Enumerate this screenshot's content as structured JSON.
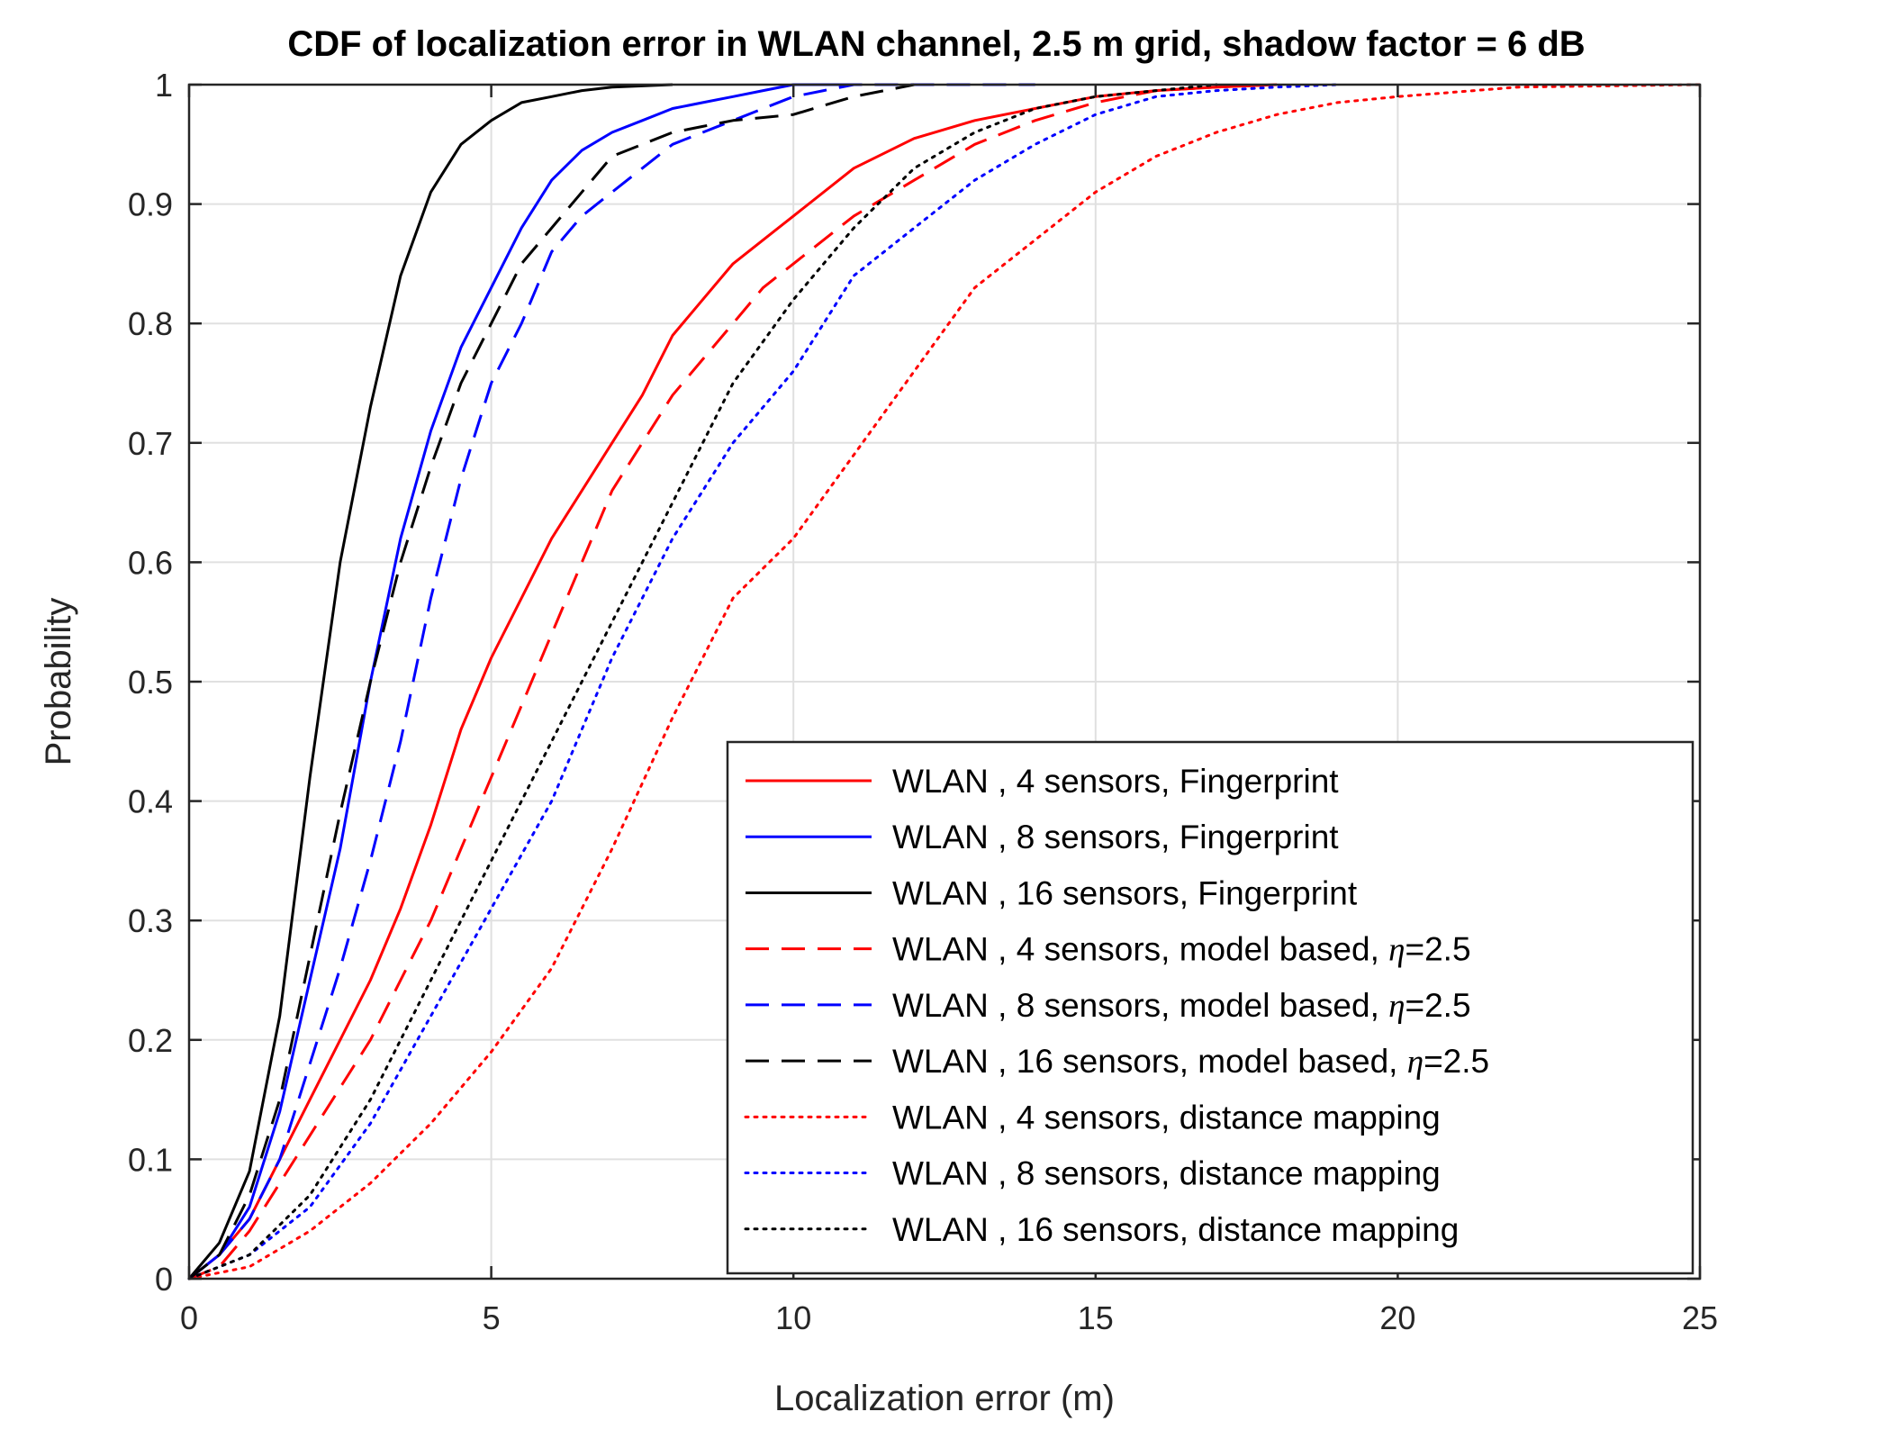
{
  "chart_data": {
    "type": "line",
    "title": "CDF of localization error in WLAN channel, 2.5 m grid, shadow factor =  6 dB",
    "xlabel": "Localization error (m)",
    "ylabel": "Probability",
    "xlim": [
      0,
      25
    ],
    "ylim": [
      0,
      1
    ],
    "xticks": [
      0,
      5,
      10,
      15,
      20,
      25
    ],
    "yticks": [
      0,
      0.1,
      0.2,
      0.3,
      0.4,
      0.5,
      0.6,
      0.7,
      0.8,
      0.9,
      1
    ],
    "xtick_labels": [
      "0",
      "5",
      "10",
      "15",
      "20",
      "25"
    ],
    "ytick_labels": [
      "0",
      "0.1",
      "0.2",
      "0.3",
      "0.4",
      "0.5",
      "0.6",
      "0.7",
      "0.8",
      "0.9",
      "1"
    ],
    "grid": true,
    "legend_position": "bottom-right",
    "series": [
      {
        "name": "WLAN , 4 sensors,    Fingerprint",
        "color": "#ff0000",
        "style": "solid",
        "x": [
          0,
          0.5,
          1,
          1.5,
          2,
          2.5,
          3,
          3.5,
          4,
          4.5,
          5,
          5.5,
          6,
          6.5,
          7,
          7.5,
          8,
          8.5,
          9,
          9.5,
          10,
          11,
          12,
          13,
          14,
          15,
          16,
          17,
          18
        ],
        "y": [
          0,
          0.02,
          0.05,
          0.1,
          0.15,
          0.2,
          0.25,
          0.31,
          0.38,
          0.46,
          0.52,
          0.57,
          0.62,
          0.66,
          0.7,
          0.74,
          0.79,
          0.82,
          0.85,
          0.87,
          0.89,
          0.93,
          0.955,
          0.97,
          0.98,
          0.99,
          0.995,
          0.998,
          1
        ]
      },
      {
        "name": "WLAN , 8 sensors,    Fingerprint",
        "color": "#0000ff",
        "style": "solid",
        "x": [
          0,
          0.5,
          1,
          1.5,
          2,
          2.5,
          3,
          3.5,
          4,
          4.5,
          5,
          5.5,
          6,
          6.5,
          7,
          7.5,
          8,
          8.5,
          9,
          9.5,
          10,
          11
        ],
        "y": [
          0,
          0.02,
          0.06,
          0.14,
          0.25,
          0.36,
          0.5,
          0.62,
          0.71,
          0.78,
          0.83,
          0.88,
          0.92,
          0.945,
          0.96,
          0.97,
          0.98,
          0.985,
          0.99,
          0.995,
          1,
          1
        ]
      },
      {
        "name": "WLAN , 16 sensors,    Fingerprint",
        "color": "#000000",
        "style": "solid",
        "x": [
          0,
          0.5,
          1,
          1.5,
          2,
          2.5,
          3,
          3.5,
          4,
          4.5,
          5,
          5.5,
          6,
          6.5,
          7,
          8
        ],
        "y": [
          0,
          0.03,
          0.09,
          0.22,
          0.42,
          0.6,
          0.73,
          0.84,
          0.91,
          0.95,
          0.97,
          0.985,
          0.99,
          0.995,
          0.998,
          1
        ]
      },
      {
        "name": "WLAN , 4 sensors,    model based, η=2.5",
        "color": "#ff0000",
        "style": "dashed",
        "x": [
          0,
          0.5,
          1,
          1.5,
          2,
          2.5,
          3,
          3.5,
          4,
          4.5,
          5,
          5.5,
          6,
          6.5,
          7,
          7.5,
          8,
          8.5,
          9,
          9.5,
          10,
          11,
          12,
          13,
          14,
          15,
          16,
          17,
          18
        ],
        "y": [
          0,
          0.01,
          0.04,
          0.08,
          0.12,
          0.16,
          0.2,
          0.25,
          0.3,
          0.36,
          0.42,
          0.48,
          0.54,
          0.6,
          0.66,
          0.7,
          0.74,
          0.77,
          0.8,
          0.83,
          0.85,
          0.89,
          0.92,
          0.95,
          0.97,
          0.985,
          0.995,
          0.998,
          1
        ]
      },
      {
        "name": "WLAN , 8 sensors,    model based, η=2.5",
        "color": "#0000ff",
        "style": "dashed",
        "x": [
          0,
          0.5,
          1,
          1.5,
          2,
          2.5,
          3,
          3.5,
          4,
          4.5,
          5,
          5.5,
          6,
          6.5,
          7,
          7.5,
          8,
          8.5,
          9,
          9.5,
          10,
          10.5,
          11,
          12,
          13,
          14
        ],
        "y": [
          0,
          0.02,
          0.05,
          0.1,
          0.18,
          0.26,
          0.35,
          0.45,
          0.57,
          0.67,
          0.75,
          0.8,
          0.86,
          0.89,
          0.91,
          0.93,
          0.95,
          0.96,
          0.97,
          0.98,
          0.99,
          0.995,
          1,
          1,
          1,
          1
        ]
      },
      {
        "name": "WLAN , 16 sensors,    model based, η=2.5",
        "color": "#000000",
        "style": "dashed",
        "x": [
          0,
          0.5,
          1,
          1.5,
          2,
          2.5,
          3,
          3.5,
          4,
          4.5,
          5,
          5.5,
          6,
          6.5,
          7,
          7.5,
          8,
          8.5,
          9,
          10,
          11,
          12
        ],
        "y": [
          0,
          0.02,
          0.07,
          0.15,
          0.27,
          0.39,
          0.5,
          0.6,
          0.68,
          0.75,
          0.8,
          0.85,
          0.88,
          0.91,
          0.94,
          0.95,
          0.96,
          0.965,
          0.97,
          0.975,
          0.99,
          1
        ]
      },
      {
        "name": "WLAN , 4 sensors,    distance mapping",
        "color": "#ff0000",
        "style": "dotted",
        "x": [
          0,
          1,
          2,
          3,
          4,
          5,
          6,
          7,
          8,
          9,
          10,
          11,
          12,
          13,
          14,
          15,
          16,
          17,
          18,
          19,
          20,
          22,
          25
        ],
        "y": [
          0,
          0.01,
          0.04,
          0.08,
          0.13,
          0.19,
          0.26,
          0.36,
          0.47,
          0.57,
          0.62,
          0.69,
          0.76,
          0.83,
          0.87,
          0.91,
          0.94,
          0.96,
          0.975,
          0.985,
          0.99,
          0.998,
          1
        ]
      },
      {
        "name": "WLAN , 8 sensors,    distance mapping",
        "color": "#0000ff",
        "style": "dotted",
        "x": [
          0,
          1,
          2,
          3,
          4,
          5,
          6,
          7,
          8,
          9,
          10,
          11,
          12,
          13,
          14,
          15,
          16,
          17,
          18,
          19
        ],
        "y": [
          0,
          0.02,
          0.06,
          0.13,
          0.22,
          0.31,
          0.4,
          0.52,
          0.62,
          0.7,
          0.76,
          0.84,
          0.88,
          0.92,
          0.95,
          0.975,
          0.99,
          0.995,
          0.998,
          1
        ]
      },
      {
        "name": "WLAN , 16 sensors,    distance mapping",
        "color": "#000000",
        "style": "dotted",
        "x": [
          0,
          1,
          2,
          3,
          4,
          5,
          6,
          7,
          8,
          9,
          10,
          11,
          12,
          13,
          14,
          15,
          16,
          17
        ],
        "y": [
          0,
          0.02,
          0.07,
          0.15,
          0.25,
          0.35,
          0.45,
          0.55,
          0.65,
          0.75,
          0.82,
          0.88,
          0.93,
          0.96,
          0.98,
          0.99,
          0.995,
          1
        ]
      }
    ]
  }
}
